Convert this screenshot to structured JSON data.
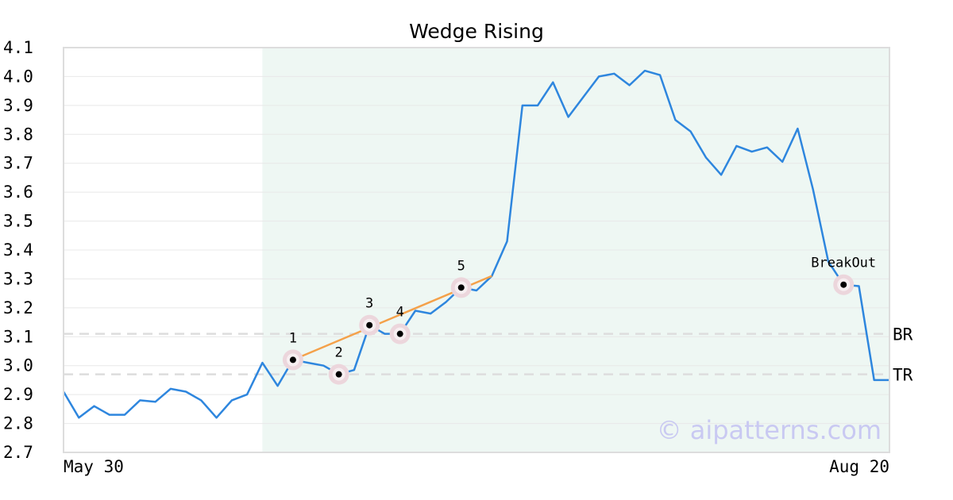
{
  "chart_data": {
    "type": "line",
    "title": "Wedge Rising",
    "xlabel": "",
    "ylabel": "",
    "ylim": [
      2.7,
      4.1
    ],
    "y_ticks": [
      "2.7",
      "2.8",
      "2.9",
      "3.0",
      "3.1",
      "3.2",
      "3.3",
      "3.4",
      "3.5",
      "3.6",
      "3.7",
      "3.8",
      "3.9",
      "4.0",
      "4.1"
    ],
    "x_tick_labels": [
      "May 30",
      "Aug 20"
    ],
    "grid": "horizontal",
    "colors": {
      "line": "#2e86de",
      "trendline": "#f4a14a",
      "highlight_region": "#eef7f3",
      "reference_line": "#dddddd",
      "marker_halo": "#ecd6dc",
      "marker": "#000000"
    },
    "series": [
      {
        "values": [
          2.91,
          2.82,
          2.86,
          2.83,
          2.83,
          2.88,
          2.875,
          2.92,
          2.91,
          2.88,
          2.82,
          2.88,
          2.9,
          3.01,
          2.93,
          3.02,
          3.01,
          3.0,
          2.97,
          2.985,
          3.14,
          3.11,
          3.11,
          3.19,
          3.18,
          3.22,
          3.27,
          3.26,
          3.31,
          3.43,
          3.9,
          3.9,
          3.98,
          3.86,
          3.93,
          4.0,
          4.01,
          3.97,
          4.02,
          4.005,
          3.85,
          3.81,
          3.72,
          3.66,
          3.76,
          3.74,
          3.755,
          3.705,
          3.82,
          3.61,
          3.36,
          3.28,
          3.275,
          2.95,
          2.95
        ]
      }
    ],
    "highlight_region": {
      "start_index": 13,
      "end_index": 54
    },
    "trendline": {
      "start": [
        15,
        3.02
      ],
      "end": [
        28,
        3.31
      ]
    },
    "pattern_points": [
      {
        "label": "1",
        "index": 15,
        "value": 3.02
      },
      {
        "label": "2",
        "index": 18,
        "value": 2.97
      },
      {
        "label": "3",
        "index": 20,
        "value": 3.14
      },
      {
        "label": "4",
        "index": 22,
        "value": 3.11
      },
      {
        "label": "5",
        "index": 26,
        "value": 3.27
      },
      {
        "label": "BreakOut",
        "index": 51,
        "value": 3.28
      }
    ],
    "reference_lines": [
      {
        "label": "BR",
        "value": 3.11
      },
      {
        "label": "TR",
        "value": 2.97
      }
    ],
    "watermark": "© aipatterns.com"
  }
}
